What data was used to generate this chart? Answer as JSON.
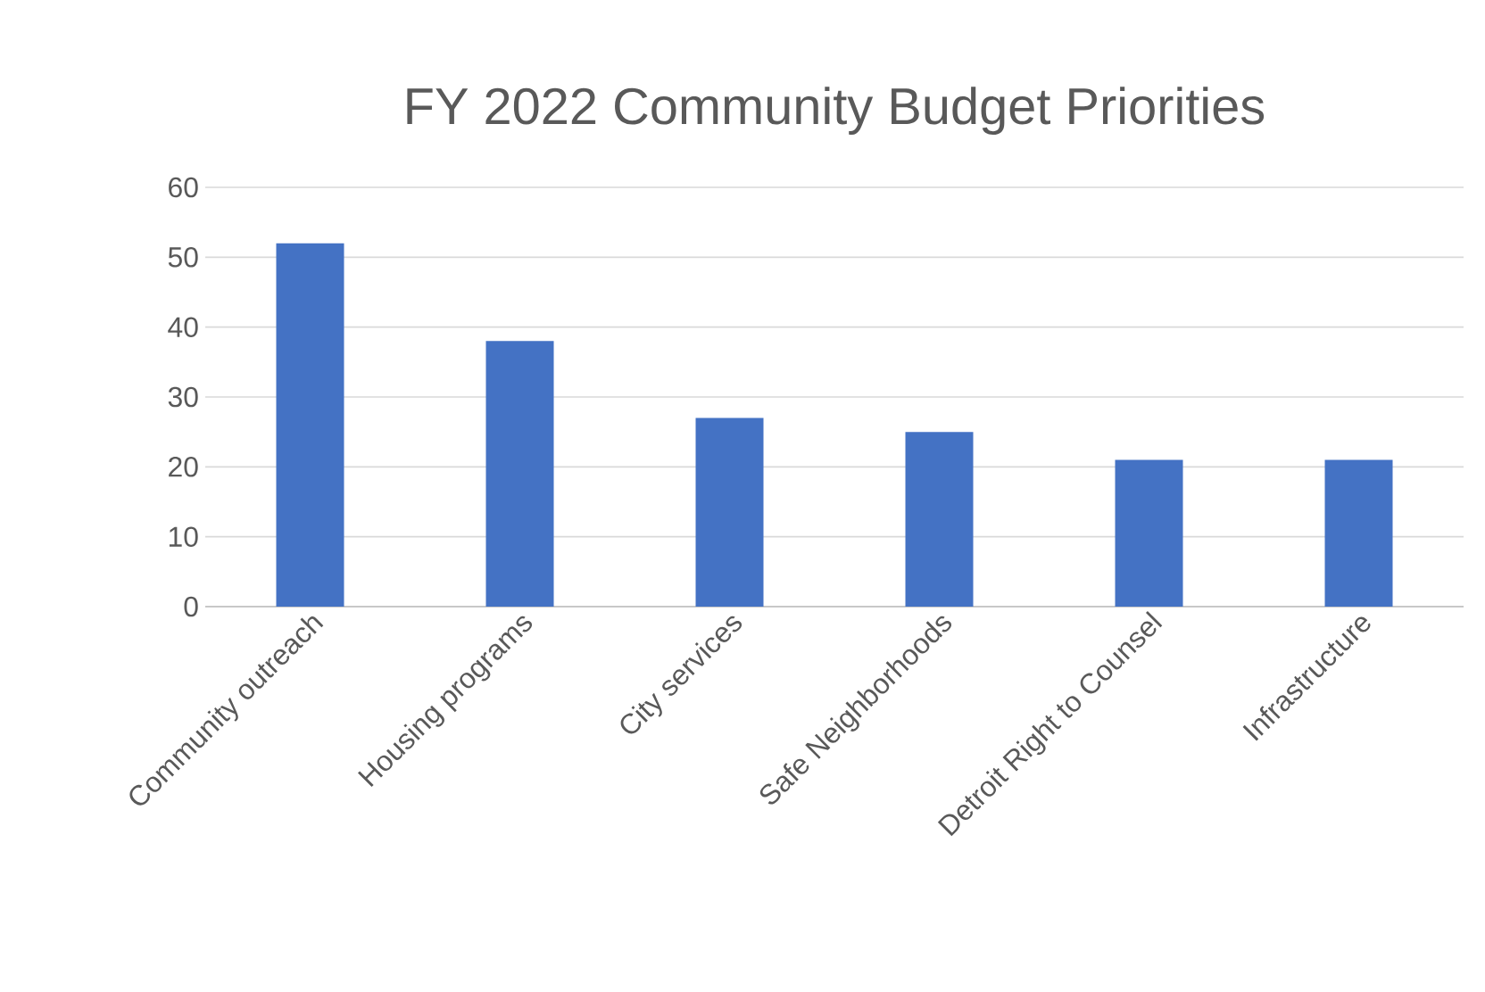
{
  "chart_data": {
    "type": "bar",
    "title": "FY 2022 Community Budget Priorities",
    "categories": [
      "Community outreach",
      "Housing programs",
      "City services",
      "Safe Neighborhoods",
      "Detroit Right to Counsel",
      "Infrastructure"
    ],
    "values": [
      52,
      38,
      27,
      25,
      21,
      21
    ],
    "color": "#4472c4",
    "ylim": [
      0,
      60
    ],
    "yticks": [
      0,
      10,
      20,
      30,
      40,
      50,
      60
    ],
    "grid": "y"
  }
}
